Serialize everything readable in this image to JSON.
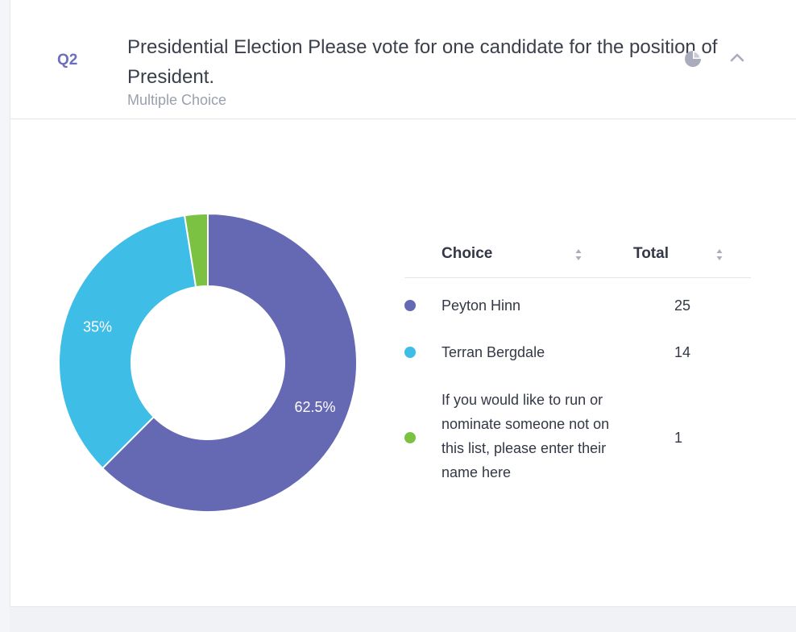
{
  "question": {
    "number": "Q2",
    "title": "Presidential Election Please vote for one candidate for the position of President.",
    "type": "Multiple Choice"
  },
  "icons": {
    "chart_toggle": "pie-chart-icon",
    "collapse": "chevron-up-icon",
    "sort": "sort-arrows-icon"
  },
  "table": {
    "columns": [
      "Choice",
      "Total"
    ],
    "rows": [
      {
        "label": "Peyton Hinn",
        "total": "25",
        "color": "#6568b2"
      },
      {
        "label": "Terran Bergdale",
        "total": "14",
        "color": "#3ebde6"
      },
      {
        "label": "If you would like to run or nominate someone not on this list, please enter their name here",
        "total": "1",
        "color": "#7cc242"
      }
    ]
  },
  "chart_data": {
    "type": "pie",
    "donut": true,
    "categories": [
      "Peyton Hinn",
      "Terran Bergdale",
      "If you would like to run or nominate someone not on this list, please enter their name here"
    ],
    "values": [
      25,
      14,
      1
    ],
    "percent_labels": [
      "62.5%",
      "35%",
      ""
    ],
    "colors": [
      "#6568b2",
      "#3ebde6",
      "#7cc242"
    ]
  }
}
